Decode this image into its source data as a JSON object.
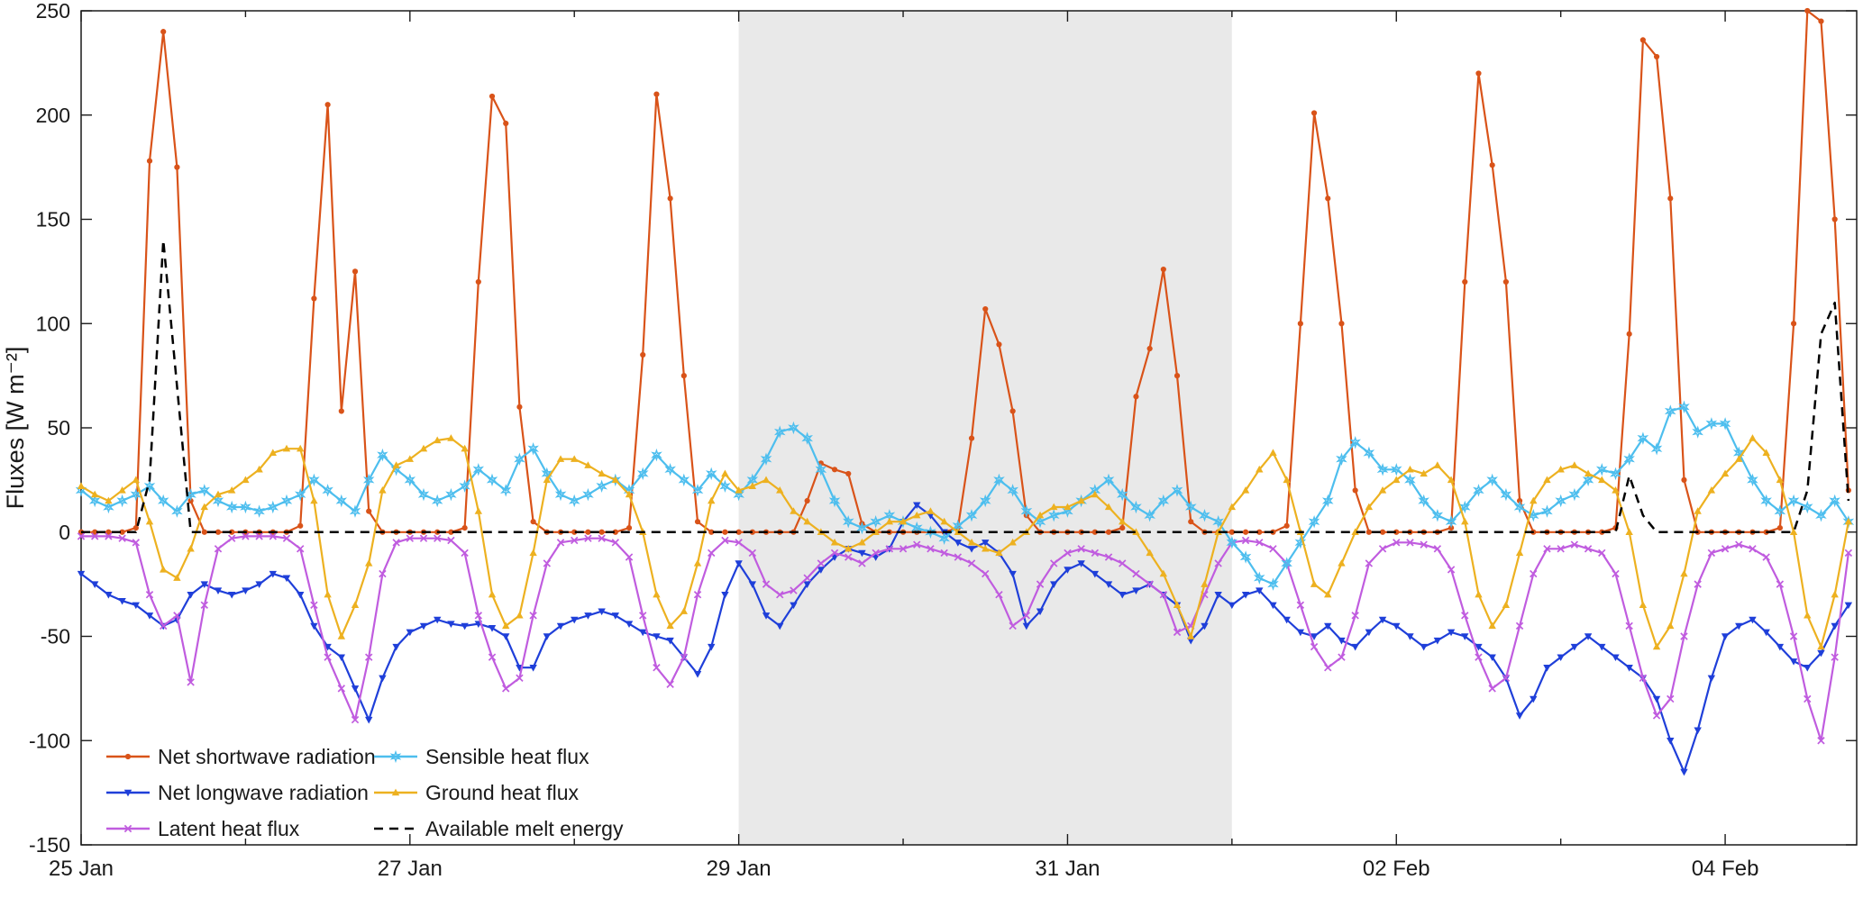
{
  "figure": {
    "ylabel": "Fluxes [W m⁻²]",
    "background_color": "#ffffff",
    "frame_color": "#1a1a1a",
    "shaded_region": {
      "x_start_day": 4,
      "x_end_day": 7,
      "color": "#e9e9e9"
    }
  },
  "chart_data": {
    "type": "line",
    "title": "",
    "xlabel": "",
    "ylabel": "Fluxes [W m⁻²]",
    "grid": false,
    "legend_position": "bottom-left-inside",
    "x_unit": "days since 25 Jan 00:00, step = 2 hours",
    "x_start": 0,
    "x_step": 0.0833333333,
    "xlim": [
      0,
      10.8
    ],
    "ylim": [
      -150,
      250
    ],
    "y_ticks": [
      -150,
      -100,
      -50,
      0,
      50,
      100,
      150,
      200,
      250
    ],
    "x_ticks": [
      {
        "day": 0,
        "label": "25 Jan"
      },
      {
        "day": 2,
        "label": "27 Jan"
      },
      {
        "day": 4,
        "label": "29 Jan"
      },
      {
        "day": 6,
        "label": "31 Jan"
      },
      {
        "day": 8,
        "label": "02 Feb"
      },
      {
        "day": 10,
        "label": "04 Feb"
      }
    ],
    "x_minor_tick_days": [
      1,
      3,
      5,
      7,
      9
    ],
    "series": [
      {
        "name": "Net shortwave radiation",
        "color": "#d95319",
        "marker": "circle",
        "dash": null,
        "values": [
          0,
          0,
          0,
          0,
          2,
          178,
          240,
          175,
          15,
          0,
          0,
          0,
          0,
          0,
          0,
          0,
          3,
          112,
          205,
          58,
          125,
          10,
          0,
          0,
          0,
          0,
          0,
          0,
          2,
          120,
          209,
          196,
          60,
          5,
          0,
          0,
          0,
          0,
          0,
          0,
          2,
          85,
          210,
          160,
          75,
          5,
          0,
          0,
          0,
          0,
          0,
          0,
          0,
          15,
          33,
          30,
          28,
          4,
          0,
          0,
          0,
          0,
          0,
          0,
          2,
          45,
          107,
          90,
          58,
          8,
          0,
          0,
          0,
          0,
          0,
          0,
          2,
          65,
          88,
          126,
          75,
          5,
          0,
          0,
          0,
          0,
          0,
          0,
          3,
          100,
          201,
          160,
          100,
          20,
          0,
          0,
          0,
          0,
          0,
          0,
          2,
          120,
          220,
          176,
          120,
          15,
          0,
          0,
          0,
          0,
          0,
          0,
          2,
          95,
          236,
          228,
          160,
          25,
          0,
          0,
          0,
          0,
          0,
          0,
          2,
          100,
          250,
          245,
          150,
          20
        ]
      },
      {
        "name": "Net longwave radiation",
        "color": "#1f3fd9",
        "marker": "triangle-down",
        "dash": null,
        "values": [
          -20,
          -25,
          -30,
          -33,
          -35,
          -40,
          -45,
          -42,
          -30,
          -25,
          -28,
          -30,
          -28,
          -25,
          -20,
          -22,
          -30,
          -45,
          -55,
          -60,
          -75,
          -90,
          -70,
          -55,
          -48,
          -45,
          -42,
          -44,
          -45,
          -44,
          -46,
          -50,
          -65,
          -65,
          -50,
          -45,
          -42,
          -40,
          -38,
          -40,
          -44,
          -48,
          -50,
          -52,
          -60,
          -68,
          -55,
          -30,
          -15,
          -25,
          -40,
          -45,
          -35,
          -25,
          -18,
          -12,
          -8,
          -10,
          -12,
          -8,
          5,
          13,
          8,
          0,
          -5,
          -8,
          -5,
          -10,
          -20,
          -45,
          -38,
          -25,
          -18,
          -15,
          -20,
          -25,
          -30,
          -28,
          -25,
          -30,
          -35,
          -52,
          -45,
          -30,
          -35,
          -30,
          -28,
          -35,
          -42,
          -48,
          -50,
          -45,
          -52,
          -55,
          -48,
          -42,
          -45,
          -50,
          -55,
          -52,
          -48,
          -50,
          -55,
          -60,
          -70,
          -88,
          -80,
          -65,
          -60,
          -55,
          -50,
          -55,
          -60,
          -65,
          -70,
          -80,
          -100,
          -115,
          -95,
          -70,
          -50,
          -45,
          -42,
          -48,
          -55,
          -62,
          -65,
          -58,
          -45,
          -35
        ]
      },
      {
        "name": "Latent heat flux",
        "color": "#c05cdf",
        "marker": "x",
        "dash": null,
        "values": [
          -2,
          -2,
          -2,
          -3,
          -5,
          -30,
          -45,
          -40,
          -72,
          -35,
          -8,
          -3,
          -2,
          -2,
          -2,
          -3,
          -8,
          -35,
          -60,
          -75,
          -90,
          -60,
          -20,
          -5,
          -3,
          -3,
          -3,
          -4,
          -10,
          -40,
          -60,
          -75,
          -70,
          -40,
          -15,
          -5,
          -4,
          -3,
          -3,
          -5,
          -12,
          -40,
          -65,
          -73,
          -60,
          -30,
          -10,
          -4,
          -5,
          -10,
          -25,
          -30,
          -28,
          -22,
          -15,
          -10,
          -12,
          -15,
          -10,
          -8,
          -8,
          -6,
          -8,
          -10,
          -12,
          -15,
          -20,
          -30,
          -45,
          -40,
          -25,
          -15,
          -10,
          -8,
          -10,
          -12,
          -15,
          -20,
          -25,
          -30,
          -48,
          -45,
          -30,
          -15,
          -5,
          -4,
          -5,
          -8,
          -15,
          -35,
          -55,
          -65,
          -60,
          -40,
          -15,
          -8,
          -5,
          -5,
          -6,
          -8,
          -18,
          -40,
          -60,
          -75,
          -70,
          -45,
          -20,
          -8,
          -8,
          -6,
          -8,
          -10,
          -20,
          -45,
          -70,
          -88,
          -80,
          -50,
          -25,
          -10,
          -8,
          -6,
          -8,
          -12,
          -25,
          -50,
          -80,
          -100,
          -60,
          -10
        ]
      },
      {
        "name": "Sensible heat flux",
        "color": "#4dbeee",
        "marker": "star",
        "dash": null,
        "values": [
          20,
          15,
          12,
          15,
          18,
          22,
          15,
          10,
          18,
          20,
          15,
          12,
          12,
          10,
          12,
          15,
          18,
          25,
          20,
          15,
          10,
          25,
          37,
          30,
          25,
          18,
          15,
          18,
          22,
          30,
          25,
          20,
          35,
          40,
          28,
          18,
          15,
          18,
          22,
          25,
          20,
          28,
          37,
          30,
          25,
          20,
          28,
          22,
          18,
          25,
          35,
          48,
          50,
          45,
          30,
          15,
          5,
          2,
          5,
          8,
          5,
          2,
          0,
          -3,
          3,
          8,
          15,
          25,
          20,
          10,
          5,
          8,
          10,
          15,
          20,
          25,
          18,
          12,
          8,
          15,
          20,
          12,
          8,
          5,
          -5,
          -12,
          -22,
          -25,
          -15,
          -5,
          5,
          15,
          35,
          43,
          38,
          30,
          30,
          25,
          15,
          8,
          5,
          12,
          20,
          25,
          18,
          12,
          8,
          10,
          15,
          18,
          25,
          30,
          28,
          35,
          45,
          40,
          58,
          60,
          48,
          52,
          52,
          38,
          25,
          15,
          10,
          15,
          12,
          8,
          15,
          5
        ]
      },
      {
        "name": "Ground heat flux",
        "color": "#edb120",
        "marker": "triangle-up",
        "dash": null,
        "values": [
          22,
          18,
          15,
          20,
          25,
          5,
          -18,
          -22,
          -8,
          12,
          18,
          20,
          25,
          30,
          38,
          40,
          40,
          15,
          -30,
          -50,
          -35,
          -15,
          20,
          32,
          35,
          40,
          44,
          45,
          40,
          10,
          -30,
          -45,
          -40,
          -10,
          25,
          35,
          35,
          32,
          28,
          25,
          18,
          0,
          -30,
          -45,
          -38,
          -15,
          15,
          28,
          20,
          22,
          25,
          20,
          10,
          5,
          0,
          -5,
          -8,
          -5,
          0,
          5,
          5,
          8,
          10,
          5,
          0,
          -5,
          -8,
          -10,
          -5,
          0,
          8,
          12,
          12,
          15,
          18,
          12,
          5,
          0,
          -10,
          -20,
          -35,
          -50,
          -25,
          0,
          12,
          20,
          30,
          38,
          25,
          0,
          -25,
          -30,
          -15,
          0,
          12,
          20,
          25,
          30,
          28,
          32,
          25,
          5,
          -30,
          -45,
          -35,
          -10,
          15,
          25,
          30,
          32,
          28,
          25,
          20,
          0,
          -35,
          -55,
          -45,
          -20,
          10,
          20,
          28,
          35,
          45,
          38,
          25,
          0,
          -40,
          -55,
          -30,
          5
        ]
      },
      {
        "name": "Available melt energy",
        "color": "#000000",
        "marker": "none",
        "dash": "10 7",
        "values": [
          0,
          0,
          0,
          0,
          0,
          25,
          140,
          70,
          0,
          0,
          0,
          0,
          0,
          0,
          0,
          0,
          0,
          0,
          0,
          0,
          0,
          0,
          0,
          0,
          0,
          0,
          0,
          0,
          0,
          0,
          0,
          0,
          0,
          0,
          0,
          0,
          0,
          0,
          0,
          0,
          0,
          0,
          0,
          0,
          0,
          0,
          0,
          0,
          0,
          0,
          0,
          0,
          0,
          0,
          0,
          0,
          0,
          0,
          0,
          0,
          0,
          0,
          0,
          0,
          0,
          0,
          0,
          0,
          0,
          0,
          0,
          0,
          0,
          0,
          0,
          0,
          0,
          0,
          0,
          0,
          0,
          0,
          0,
          0,
          0,
          0,
          0,
          0,
          0,
          0,
          0,
          0,
          0,
          0,
          0,
          0,
          0,
          0,
          0,
          0,
          0,
          0,
          0,
          0,
          0,
          0,
          0,
          0,
          0,
          0,
          0,
          0,
          0,
          27,
          8,
          0,
          0,
          0,
          0,
          0,
          0,
          0,
          0,
          0,
          0,
          0,
          20,
          95,
          110,
          15
        ]
      }
    ]
  }
}
